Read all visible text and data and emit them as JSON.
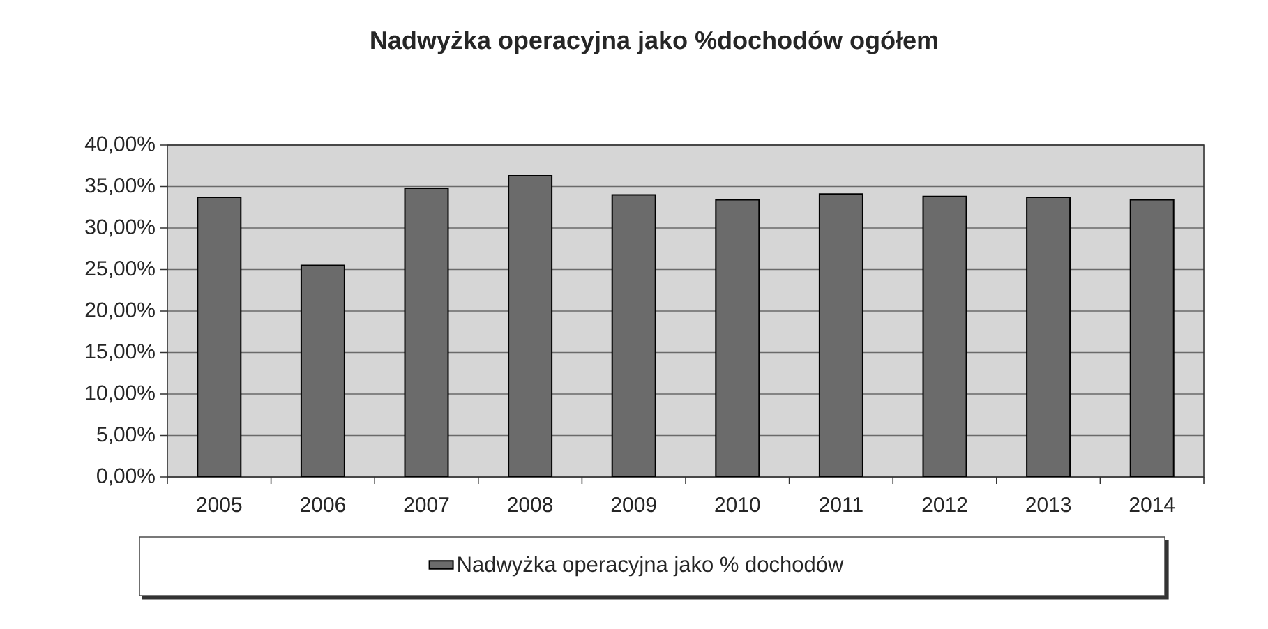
{
  "chart_data": {
    "type": "bar",
    "title": "Nadwyżka operacyjna jako %dochodów ogółem",
    "categories": [
      "2005",
      "2006",
      "2007",
      "2008",
      "2009",
      "2010",
      "2011",
      "2012",
      "2013",
      "2014"
    ],
    "series": [
      {
        "name": "Nadwyżka operacyjna jako % dochodów",
        "color": "#6b6b6b",
        "values": [
          33.7,
          25.5,
          34.8,
          36.3,
          34.0,
          33.4,
          34.1,
          33.8,
          33.7,
          33.4
        ]
      }
    ],
    "ylim": [
      0,
      40
    ],
    "yticks": [
      {
        "value": 0,
        "label": "0,00%"
      },
      {
        "value": 5,
        "label": "5,00%"
      },
      {
        "value": 10,
        "label": "10,00%"
      },
      {
        "value": 15,
        "label": "15,00%"
      },
      {
        "value": 20,
        "label": "20,00%"
      },
      {
        "value": 25,
        "label": "25,00%"
      },
      {
        "value": 30,
        "label": "30,00%"
      },
      {
        "value": 35,
        "label": "35,00%"
      },
      {
        "value": 40,
        "label": "40,00%"
      }
    ],
    "grid": "y",
    "legend": "bottom"
  }
}
